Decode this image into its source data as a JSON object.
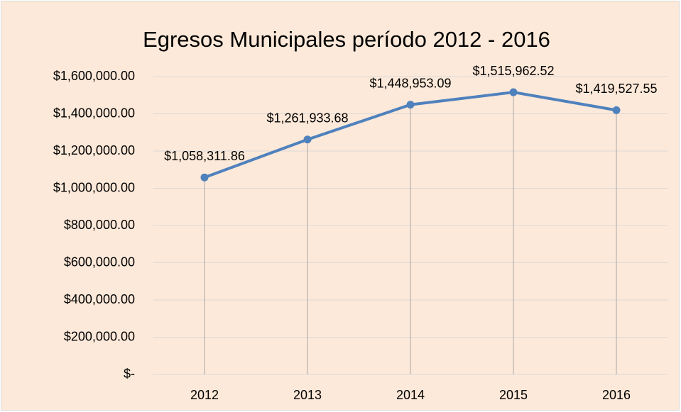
{
  "chart_data": {
    "type": "line",
    "title": "Egresos Municipales período 2012 - 2016",
    "categories": [
      "2012",
      "2013",
      "2014",
      "2015",
      "2016"
    ],
    "series": [
      {
        "name": "Egresos",
        "color": "#4f81bd",
        "values": [
          1058311.86,
          1261933.68,
          1448953.09,
          1515962.52,
          1419527.55
        ],
        "value_labels": [
          "$1,058,311.86",
          "$1,261,933.68",
          "$1,448,953.09",
          "$1,515,962.52",
          "$1,419,527.55"
        ]
      }
    ],
    "ylim": [
      0,
      1600000
    ],
    "yticks": [
      {
        "value": 0,
        "label": "$-"
      },
      {
        "value": 200000,
        "label": "$200,000.00"
      },
      {
        "value": 400000,
        "label": "$400,000.00"
      },
      {
        "value": 600000,
        "label": "$600,000.00"
      },
      {
        "value": 800000,
        "label": "$800,000.00"
      },
      {
        "value": 1000000,
        "label": "$1,000,000.00"
      },
      {
        "value": 1200000,
        "label": "$1,200,000.00"
      },
      {
        "value": 1400000,
        "label": "$1,400,000.00"
      },
      {
        "value": 1600000,
        "label": "$1,600,000.00"
      }
    ],
    "grid": true,
    "drop_lines": true,
    "markers": true
  }
}
